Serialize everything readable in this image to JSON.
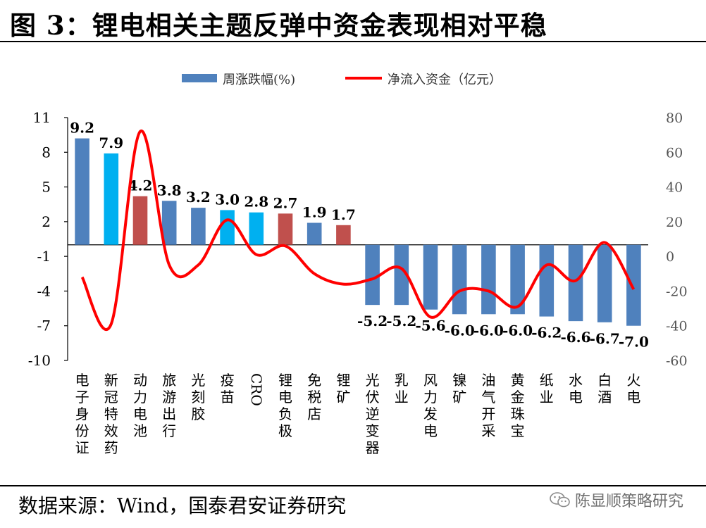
{
  "title": "图 3：锂电相关主题反弹中资金表现相对平稳",
  "source": "数据来源：Wind，国泰君安证券研究",
  "watermark": "陈显顺策略研究",
  "chart_data": {
    "type": "bar",
    "categories": [
      "电子身份证",
      "新冠特效药",
      "动力电池",
      "旅游出行",
      "光刻胶",
      "疫苗",
      "CRO",
      "锂电负极",
      "免税店",
      "锂矿",
      "光伏逆变器",
      "乳业",
      "风力发电",
      "镍矿",
      "油气开采",
      "黄金珠宝",
      "纸业",
      "水电",
      "白酒",
      "火电"
    ],
    "series": [
      {
        "name": "周涨跌幅(%)",
        "type": "bar",
        "axis": "left",
        "values": [
          9.2,
          7.9,
          4.2,
          3.8,
          3.2,
          3.0,
          2.8,
          2.7,
          1.9,
          1.7,
          -5.2,
          -5.2,
          -5.6,
          -6.0,
          -6.0,
          -6.0,
          -6.2,
          -6.6,
          -6.7,
          -7.0
        ],
        "value_labels": [
          "9.2",
          "7.9",
          "4.2",
          "3.8",
          "3.2",
          "3.0",
          "2.8",
          "2.7",
          "1.9",
          "1.7",
          "-5.2",
          "-5.2",
          "-5.6",
          "-6.0",
          "-6.0",
          "-6.0",
          "-6.2",
          "-6.6",
          "-6.7",
          "-7.0"
        ],
        "colors": [
          "#4F81BD",
          "#00B0F0",
          "#C0504D",
          "#4F81BD",
          "#4F81BD",
          "#00B0F0",
          "#00B0F0",
          "#C0504D",
          "#4F81BD",
          "#C0504D",
          "#4F81BD",
          "#4F81BD",
          "#4F81BD",
          "#4F81BD",
          "#4F81BD",
          "#4F81BD",
          "#4F81BD",
          "#4F81BD",
          "#4F81BD",
          "#4F81BD"
        ]
      },
      {
        "name": "净流入资金（亿元）",
        "type": "line",
        "axis": "right",
        "color": "#FF0000",
        "values": [
          -12,
          -39,
          72,
          -5,
          -5,
          21,
          1,
          6,
          -10,
          -16,
          -13,
          -7,
          -35,
          -20,
          -20,
          -29,
          -5,
          -14,
          8,
          -19
        ]
      }
    ],
    "yaxis_left": {
      "ticks": [
        "11",
        "8",
        "5",
        "2",
        "-1",
        "-4",
        "-7",
        "-10"
      ],
      "range": [
        -10,
        11
      ]
    },
    "yaxis_right": {
      "ticks": [
        "80",
        "60",
        "40",
        "20",
        "0",
        "-20",
        "-40",
        "-60"
      ],
      "range": [
        -60,
        80
      ]
    },
    "legend_position": "top-center",
    "grid": false,
    "colors": {
      "bar_blue": "#4F81BD",
      "bar_cyan": "#00B0F0",
      "bar_red": "#C0504D",
      "line": "#FF0000"
    }
  }
}
